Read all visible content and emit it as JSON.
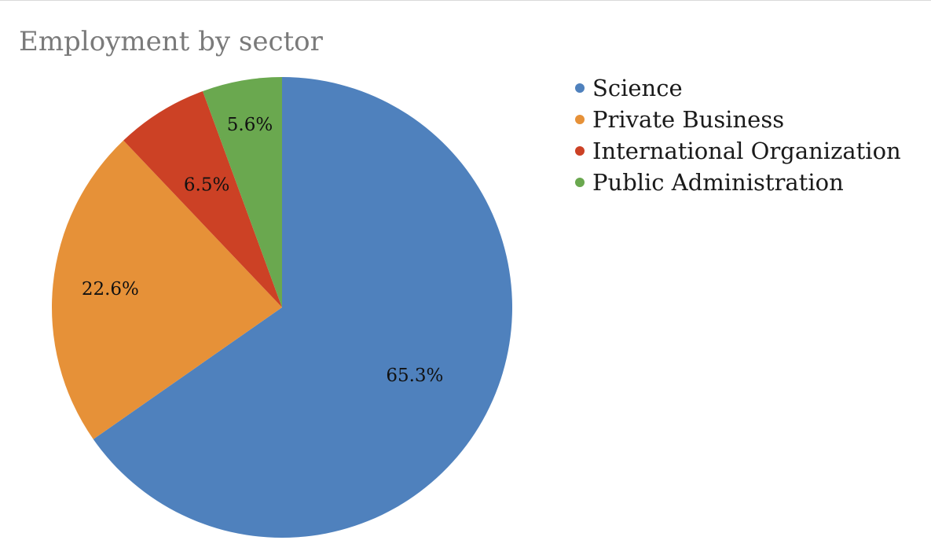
{
  "chart_data": {
    "type": "pie",
    "title": "Employment by sector",
    "slices": [
      {
        "name": "Science",
        "value": 65.3,
        "label": "65.3%",
        "color": "#4f81bd"
      },
      {
        "name": "Private Business",
        "value": 22.6,
        "label": "22.6%",
        "color": "#e69138"
      },
      {
        "name": "International Organization",
        "value": 6.5,
        "label": "6.5%",
        "color": "#cc4125"
      },
      {
        "name": "Public Administration",
        "value": 5.6,
        "label": "5.6%",
        "color": "#6aa84f"
      }
    ],
    "start_angle_deg": 0,
    "direction": "clockwise",
    "legend_position": "top-right"
  }
}
